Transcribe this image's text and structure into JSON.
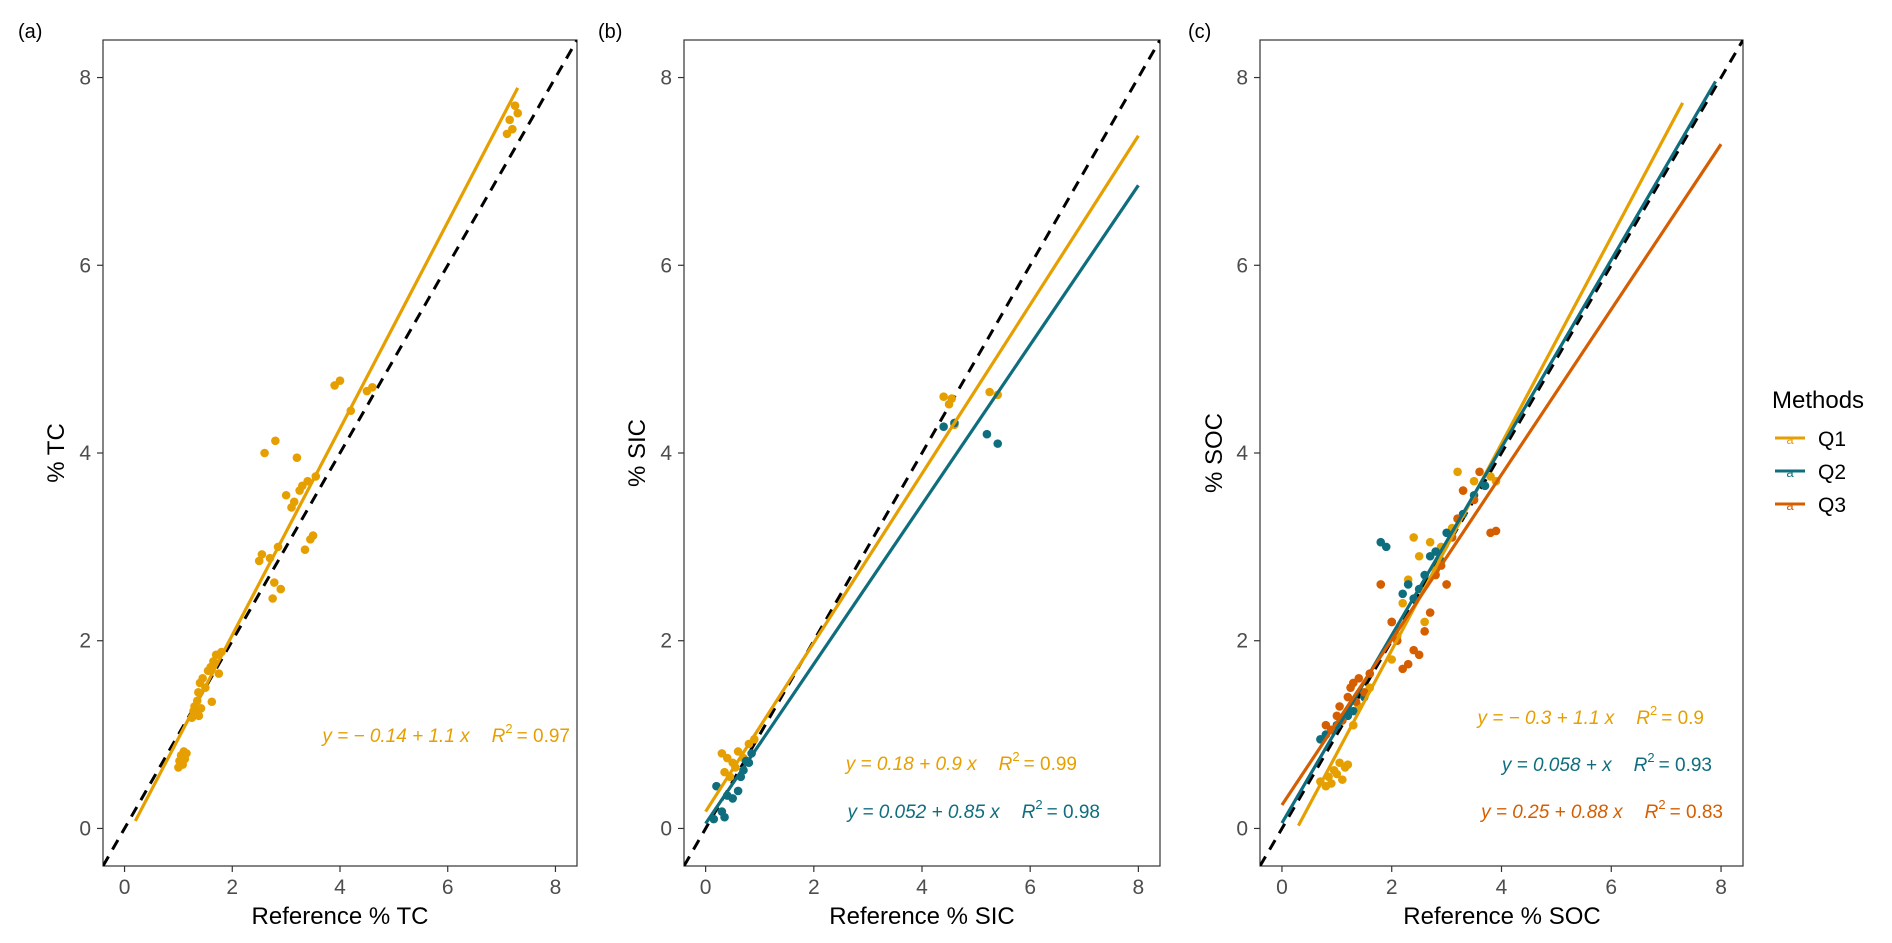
{
  "colors": {
    "Q1": "#E69F00",
    "Q2": "#0F6E7E",
    "Q3": "#D55E00",
    "identity": "#000000"
  },
  "legend": {
    "title": "Methods",
    "items": [
      "Q1",
      "Q2",
      "Q3"
    ],
    "key_glyph": "a"
  },
  "chart_data": [
    {
      "type": "scatter",
      "panel_label": "(a)",
      "xlabel": "Reference % TC",
      "ylabel": "% TC",
      "xlim": [
        -0.4,
        8.4
      ],
      "ylim": [
        -0.4,
        8.4
      ],
      "x_ticks": [
        "0",
        "2",
        "4",
        "6",
        "8"
      ],
      "y_ticks": [
        "0",
        "2",
        "4",
        "6",
        "8"
      ],
      "grid": false,
      "identity_line": true,
      "series": [
        {
          "name": "Q1",
          "color_key": "Q1",
          "points": [
            [
              1.0,
              0.65
            ],
            [
              1.02,
              0.72
            ],
            [
              1.05,
              0.78
            ],
            [
              1.08,
              0.68
            ],
            [
              1.1,
              0.82
            ],
            [
              1.12,
              0.74
            ],
            [
              1.15,
              0.8
            ],
            [
              1.25,
              1.18
            ],
            [
              1.28,
              1.25
            ],
            [
              1.3,
              1.3
            ],
            [
              1.32,
              1.22
            ],
            [
              1.35,
              1.36
            ],
            [
              1.37,
              1.45
            ],
            [
              1.38,
              1.2
            ],
            [
              1.4,
              1.55
            ],
            [
              1.42,
              1.28
            ],
            [
              1.45,
              1.6
            ],
            [
              1.5,
              1.5
            ],
            [
              1.55,
              1.68
            ],
            [
              1.6,
              1.72
            ],
            [
              1.62,
              1.35
            ],
            [
              1.65,
              1.78
            ],
            [
              1.7,
              1.85
            ],
            [
              1.75,
              1.65
            ],
            [
              1.8,
              1.88
            ],
            [
              2.5,
              2.85
            ],
            [
              2.55,
              2.92
            ],
            [
              2.6,
              4.0
            ],
            [
              2.7,
              2.88
            ],
            [
              2.75,
              2.45
            ],
            [
              2.78,
              2.62
            ],
            [
              2.8,
              4.13
            ],
            [
              2.85,
              3.0
            ],
            [
              2.9,
              2.55
            ],
            [
              3.0,
              3.55
            ],
            [
              3.1,
              3.42
            ],
            [
              3.15,
              3.48
            ],
            [
              3.2,
              3.95
            ],
            [
              3.25,
              3.6
            ],
            [
              3.3,
              3.65
            ],
            [
              3.35,
              2.97
            ],
            [
              3.4,
              3.7
            ],
            [
              3.45,
              3.08
            ],
            [
              3.5,
              3.12
            ],
            [
              3.55,
              3.75
            ],
            [
              3.9,
              4.72
            ],
            [
              4.0,
              4.77
            ],
            [
              4.2,
              4.45
            ],
            [
              4.5,
              4.66
            ],
            [
              4.6,
              4.7
            ],
            [
              7.1,
              7.4
            ],
            [
              7.15,
              7.55
            ],
            [
              7.2,
              7.45
            ],
            [
              7.25,
              7.7
            ],
            [
              7.3,
              7.62
            ]
          ],
          "fit": {
            "intercept": -0.14,
            "slope": 1.1,
            "x_range": [
              0.2,
              7.3
            ]
          },
          "equation": "y = − 0.14 + 1.1 x",
          "r2_label": "R",
          "r2_value": "= 0.97"
        }
      ]
    },
    {
      "type": "scatter",
      "panel_label": "(b)",
      "xlabel": "Reference % SIC",
      "ylabel": "% SIC",
      "xlim": [
        -0.4,
        8.4
      ],
      "ylim": [
        -0.4,
        8.4
      ],
      "x_ticks": [
        "0",
        "2",
        "4",
        "6",
        "8"
      ],
      "y_ticks": [
        "0",
        "2",
        "4",
        "6",
        "8"
      ],
      "grid": false,
      "identity_line": true,
      "series": [
        {
          "name": "Q1",
          "color_key": "Q1",
          "points": [
            [
              0.3,
              0.8
            ],
            [
              0.35,
              0.6
            ],
            [
              0.4,
              0.75
            ],
            [
              0.45,
              0.55
            ],
            [
              0.5,
              0.7
            ],
            [
              0.55,
              0.65
            ],
            [
              0.6,
              0.82
            ],
            [
              0.7,
              0.75
            ],
            [
              0.8,
              0.9
            ],
            [
              0.9,
              0.95
            ],
            [
              4.4,
              4.6
            ],
            [
              4.5,
              4.52
            ],
            [
              4.55,
              4.58
            ],
            [
              4.6,
              4.3
            ],
            [
              5.25,
              4.65
            ],
            [
              5.4,
              4.62
            ]
          ],
          "fit": {
            "intercept": 0.18,
            "slope": 0.9,
            "x_range": [
              0.0,
              8.0
            ]
          },
          "equation": "y = 0.18 + 0.9 x",
          "r2_label": "R",
          "r2_value": "= 0.99"
        },
        {
          "name": "Q2",
          "color_key": "Q2",
          "points": [
            [
              0.15,
              0.1
            ],
            [
              0.2,
              0.45
            ],
            [
              0.3,
              0.18
            ],
            [
              0.35,
              0.12
            ],
            [
              0.4,
              0.35
            ],
            [
              0.5,
              0.32
            ],
            [
              0.6,
              0.4
            ],
            [
              0.65,
              0.55
            ],
            [
              0.7,
              0.62
            ],
            [
              0.75,
              0.72
            ],
            [
              0.8,
              0.7
            ],
            [
              0.85,
              0.8
            ],
            [
              4.4,
              4.28
            ],
            [
              4.6,
              4.32
            ],
            [
              5.2,
              4.2
            ],
            [
              5.4,
              4.1
            ]
          ],
          "fit": {
            "intercept": 0.052,
            "slope": 0.85,
            "x_range": [
              0.0,
              8.0
            ]
          },
          "equation": "y = 0.052 + 0.85 x",
          "r2_label": "R",
          "r2_value": "= 0.98"
        }
      ]
    },
    {
      "type": "scatter",
      "panel_label": "(c)",
      "xlabel": "Reference % SOC",
      "ylabel": "% SOC",
      "xlim": [
        -0.4,
        8.4
      ],
      "ylim": [
        -0.4,
        8.4
      ],
      "x_ticks": [
        "0",
        "2",
        "4",
        "6",
        "8"
      ],
      "y_ticks": [
        "0",
        "2",
        "4",
        "6",
        "8"
      ],
      "grid": false,
      "identity_line": true,
      "series": [
        {
          "name": "Q1",
          "color_key": "Q1",
          "points": [
            [
              0.7,
              0.5
            ],
            [
              0.8,
              0.45
            ],
            [
              0.85,
              0.55
            ],
            [
              0.9,
              0.48
            ],
            [
              0.95,
              0.62
            ],
            [
              1.0,
              0.58
            ],
            [
              1.05,
              0.7
            ],
            [
              1.1,
              0.52
            ],
            [
              1.15,
              0.65
            ],
            [
              1.2,
              0.68
            ],
            [
              1.3,
              1.1
            ],
            [
              1.4,
              1.3
            ],
            [
              1.6,
              1.5
            ],
            [
              1.8,
              2.6
            ],
            [
              2.0,
              1.8
            ],
            [
              2.1,
              2.05
            ],
            [
              2.2,
              2.4
            ],
            [
              2.3,
              2.65
            ],
            [
              2.4,
              3.1
            ],
            [
              2.5,
              2.9
            ],
            [
              2.6,
              2.2
            ],
            [
              2.7,
              3.05
            ],
            [
              2.8,
              2.75
            ],
            [
              2.9,
              3.0
            ],
            [
              3.0,
              2.6
            ],
            [
              3.1,
              3.2
            ],
            [
              3.2,
              3.8
            ],
            [
              3.3,
              3.6
            ],
            [
              3.5,
              3.7
            ],
            [
              3.8,
              3.75
            ],
            [
              3.9,
              3.7
            ]
          ],
          "fit": {
            "intercept": -0.3,
            "slope": 1.1,
            "x_range": [
              0.3,
              7.3
            ]
          },
          "equation": "y = − 0.3 + 1.1 x",
          "r2_label": "R",
          "r2_value": "= 0.9"
        },
        {
          "name": "Q2",
          "color_key": "Q2",
          "points": [
            [
              0.7,
              0.95
            ],
            [
              0.8,
              1.0
            ],
            [
              0.9,
              1.05
            ],
            [
              1.0,
              1.1
            ],
            [
              1.1,
              1.15
            ],
            [
              1.2,
              1.2
            ],
            [
              1.3,
              1.25
            ],
            [
              1.5,
              1.4
            ],
            [
              1.8,
              3.05
            ],
            [
              1.9,
              3.0
            ],
            [
              2.0,
              2.2
            ],
            [
              2.2,
              2.5
            ],
            [
              2.3,
              2.6
            ],
            [
              2.4,
              2.45
            ],
            [
              2.5,
              2.55
            ],
            [
              2.6,
              2.7
            ],
            [
              2.7,
              2.9
            ],
            [
              2.8,
              2.95
            ],
            [
              2.9,
              2.85
            ],
            [
              3.0,
              3.15
            ],
            [
              3.2,
              3.3
            ],
            [
              3.3,
              3.35
            ],
            [
              3.5,
              3.55
            ],
            [
              3.7,
              3.65
            ]
          ],
          "fit": {
            "intercept": 0.058,
            "slope": 1.0,
            "x_range": [
              0.0,
              7.9
            ]
          },
          "equation": "y = 0.058 +  x",
          "r2_label": "R",
          "r2_value": "= 0.93"
        },
        {
          "name": "Q3",
          "color_key": "Q3",
          "points": [
            [
              0.8,
              1.1
            ],
            [
              0.9,
              1.05
            ],
            [
              1.0,
              1.2
            ],
            [
              1.05,
              1.3
            ],
            [
              1.1,
              1.15
            ],
            [
              1.2,
              1.4
            ],
            [
              1.25,
              1.5
            ],
            [
              1.3,
              1.55
            ],
            [
              1.35,
              1.35
            ],
            [
              1.4,
              1.6
            ],
            [
              1.5,
              1.45
            ],
            [
              1.6,
              1.65
            ],
            [
              1.8,
              2.6
            ],
            [
              2.0,
              2.2
            ],
            [
              2.1,
              2.0
            ],
            [
              2.2,
              1.7
            ],
            [
              2.3,
              1.75
            ],
            [
              2.4,
              1.9
            ],
            [
              2.5,
              1.85
            ],
            [
              2.6,
              2.1
            ],
            [
              2.7,
              2.3
            ],
            [
              2.8,
              2.7
            ],
            [
              2.9,
              2.8
            ],
            [
              3.0,
              2.6
            ],
            [
              3.1,
              3.1
            ],
            [
              3.2,
              3.3
            ],
            [
              3.3,
              3.6
            ],
            [
              3.5,
              3.5
            ],
            [
              3.6,
              3.8
            ],
            [
              3.8,
              3.15
            ],
            [
              3.9,
              3.17
            ]
          ],
          "fit": {
            "intercept": 0.25,
            "slope": 0.88,
            "x_range": [
              0.0,
              8.0
            ]
          },
          "equation": "y = 0.25 + 0.88 x",
          "r2_label": "R",
          "r2_value": "= 0.83"
        }
      ]
    }
  ]
}
